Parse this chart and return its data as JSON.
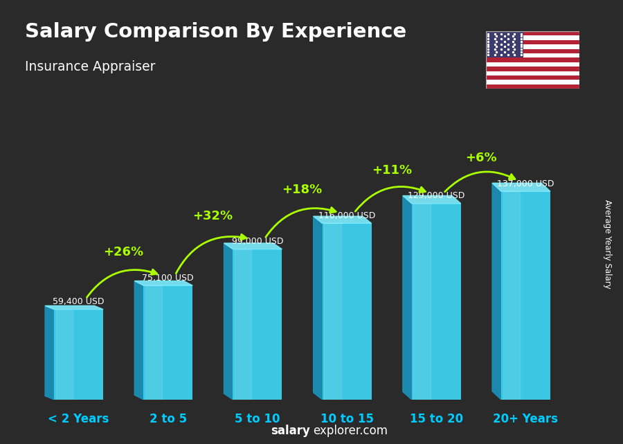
{
  "title": "Salary Comparison By Experience",
  "subtitle": "Insurance Appraiser",
  "categories": [
    "< 2 Years",
    "2 to 5",
    "5 to 10",
    "10 to 15",
    "15 to 20",
    "20+ Years"
  ],
  "values": [
    59400,
    75100,
    99000,
    116000,
    129000,
    137000
  ],
  "salary_labels": [
    "59,400 USD",
    "75,100 USD",
    "99,000 USD",
    "116,000 USD",
    "129,000 USD",
    "137,000 USD"
  ],
  "pct_labels": [
    "+26%",
    "+32%",
    "+18%",
    "+11%",
    "+6%"
  ],
  "face_color": "#3dd6f5",
  "side_color": "#1a8fb5",
  "top_color": "#7eeeff",
  "bg_color": "#2a2a2a",
  "title_color": "#ffffff",
  "subtitle_color": "#ffffff",
  "salary_label_color": "#ffffff",
  "pct_color": "#aaff00",
  "xlabel_color": "#00ccff",
  "watermark": "salaryexplorer.com",
  "ylabel_text": "Average Yearly Salary",
  "figsize": [
    9.0,
    6.41
  ],
  "dpi": 100
}
